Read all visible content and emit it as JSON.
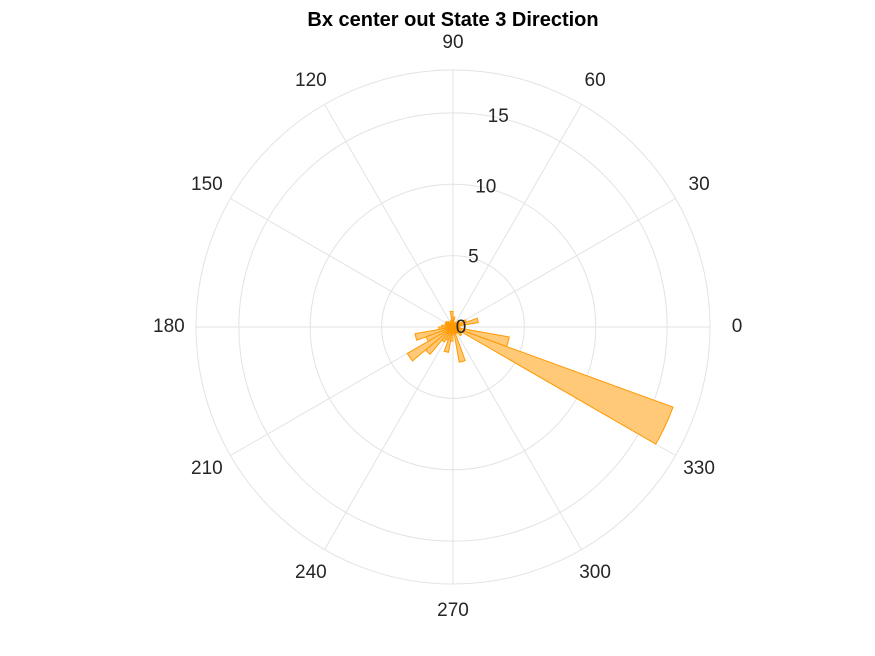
{
  "chart_data": {
    "type": "polar-histogram",
    "title": "Bx  center out State 3 Direction",
    "r_ticks": [
      0,
      5,
      10,
      15
    ],
    "rlim": [
      0,
      18
    ],
    "theta_ticks": [
      0,
      30,
      60,
      90,
      120,
      150,
      180,
      210,
      240,
      270,
      300,
      330
    ],
    "theta_tick_labels": [
      "0",
      "30",
      "60",
      "90",
      "120",
      "150",
      "180",
      "210",
      "240",
      "270",
      "300",
      "330"
    ],
    "grid": true,
    "bin_width_deg": 10,
    "bar_color": "#ffc978",
    "edge_color": "#ff9900",
    "bins": [
      {
        "center": 5,
        "value": 0.3
      },
      {
        "center": 15,
        "value": 1.8
      },
      {
        "center": 25,
        "value": 1.0
      },
      {
        "center": 35,
        "value": 0.5
      },
      {
        "center": 45,
        "value": 0.6
      },
      {
        "center": 55,
        "value": 0.4
      },
      {
        "center": 65,
        "value": 0.3
      },
      {
        "center": 75,
        "value": 0.3
      },
      {
        "center": 85,
        "value": 0.7
      },
      {
        "center": 95,
        "value": 1.1
      },
      {
        "center": 105,
        "value": 0.5
      },
      {
        "center": 115,
        "value": 0.4
      },
      {
        "center": 125,
        "value": 0.3
      },
      {
        "center": 135,
        "value": 0.5
      },
      {
        "center": 145,
        "value": 0.6
      },
      {
        "center": 155,
        "value": 0.6
      },
      {
        "center": 165,
        "value": 0.5
      },
      {
        "center": 175,
        "value": 0.8
      },
      {
        "center": 185,
        "value": 1.0
      },
      {
        "center": 195,
        "value": 2.7
      },
      {
        "center": 205,
        "value": 2.0
      },
      {
        "center": 215,
        "value": 3.7
      },
      {
        "center": 225,
        "value": 2.5
      },
      {
        "center": 235,
        "value": 1.2
      },
      {
        "center": 245,
        "value": 1.0
      },
      {
        "center": 255,
        "value": 1.8
      },
      {
        "center": 265,
        "value": 1.0
      },
      {
        "center": 275,
        "value": 0.4
      },
      {
        "center": 285,
        "value": 2.5
      },
      {
        "center": 295,
        "value": 0.5
      },
      {
        "center": 305,
        "value": 0.5
      },
      {
        "center": 315,
        "value": 0.8
      },
      {
        "center": 325,
        "value": 0.5
      },
      {
        "center": 335,
        "value": 16.4
      },
      {
        "center": 345,
        "value": 4.0
      },
      {
        "center": 355,
        "value": 0.5
      }
    ]
  }
}
